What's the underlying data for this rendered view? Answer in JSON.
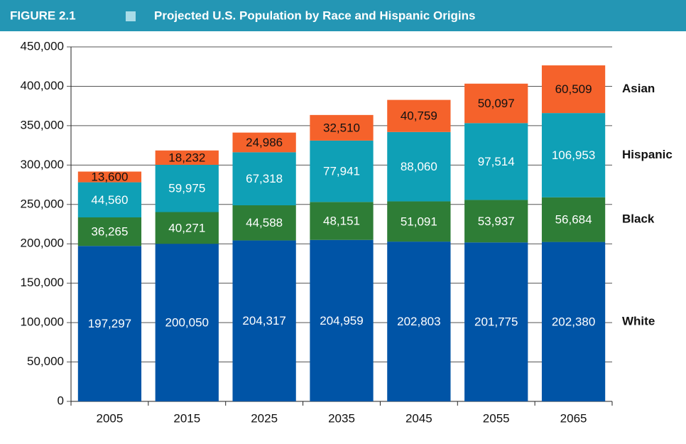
{
  "chart_data": {
    "type": "stacked_bar",
    "label": "FIGURE 2.1",
    "title": "Projected U.S. Population by Race and Hispanic Origins",
    "categories": [
      "2005",
      "2015",
      "2025",
      "2035",
      "2045",
      "2055",
      "2065"
    ],
    "series": [
      {
        "name": "White",
        "color": "#0054a6",
        "values": [
          197297,
          200050,
          204317,
          204959,
          202803,
          201775,
          202380
        ],
        "value_labels": [
          "197,297",
          "200,050",
          "204,317",
          "204,959",
          "202,803",
          "201,775",
          "202,380"
        ]
      },
      {
        "name": "Black",
        "color": "#2e7d36",
        "values": [
          36265,
          40271,
          44588,
          48151,
          51091,
          53937,
          56684
        ],
        "value_labels": [
          "36,265",
          "40,271",
          "44,588",
          "48,151",
          "51,091",
          "53,937",
          "56,684"
        ]
      },
      {
        "name": "Hispanic",
        "color": "#0fa0b6",
        "values": [
          44560,
          59975,
          67318,
          77941,
          88060,
          97514,
          106953
        ],
        "value_labels": [
          "44,560",
          "59,975",
          "67,318",
          "77,941",
          "88,060",
          "97,514",
          "106,953"
        ]
      },
      {
        "name": "Asian",
        "color": "#f5622b",
        "values": [
          13600,
          18232,
          24986,
          32510,
          40759,
          50097,
          60509
        ],
        "value_labels": [
          "13,600",
          "18,232",
          "24,986",
          "32,510",
          "40,759",
          "50,097",
          "60,509"
        ]
      }
    ],
    "ylim": [
      0,
      450000
    ],
    "yticks": [
      0,
      {
        "value": 50000,
        "label": "50,000"
      },
      {
        "value": 100000,
        "label": "100,000"
      },
      {
        "value": 150000,
        "label": "150,000"
      },
      {
        "value": 200000,
        "label": "200,000"
      },
      {
        "value": 250000,
        "label": "250,000"
      },
      {
        "value": 300000,
        "label": "300,000"
      },
      {
        "value": 350000,
        "label": "350,000"
      },
      {
        "value": 400000,
        "label": "400,000"
      },
      {
        "value": 450000,
        "label": "450,000"
      }
    ],
    "grid": true
  }
}
